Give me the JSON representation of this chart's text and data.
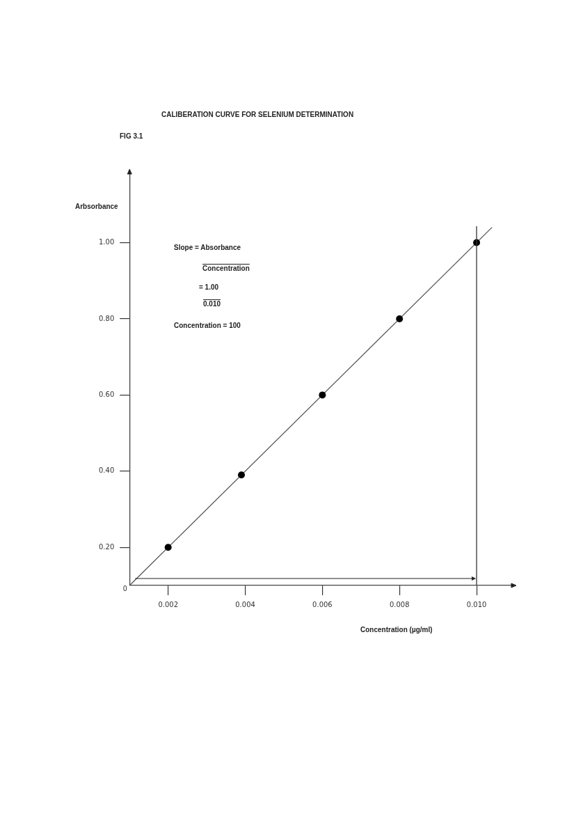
{
  "chart_data": {
    "type": "scatter",
    "title": "CALIBERATION CURVE FOR SELENIUM DETERMINATION",
    "subtitle": "FIG 3.1",
    "xlabel": "Concentration (µg/ml)",
    "ylabel": "Arbsorbance",
    "x": [
      0.002,
      0.0039,
      0.006,
      0.008,
      0.01
    ],
    "series": [
      {
        "color": "#000000",
        "values": [
          0.2,
          0.39,
          0.6,
          0.8,
          1.0
        ],
        "marker": "circle"
      },
      {
        "type": "line",
        "color": "#555555",
        "x": [
          0.001,
          0.0104
        ],
        "values": [
          0.1,
          1.04
        ],
        "marker": "none"
      }
    ],
    "xlim": [
      0.001,
      0.0109
    ],
    "ylim": [
      0.1,
      1.18
    ],
    "xticks": [
      {
        "value": 0.002,
        "label": "0.002"
      },
      {
        "value": 0.004,
        "label": "0.004"
      },
      {
        "value": 0.006,
        "label": "0.006"
      },
      {
        "value": 0.008,
        "label": "0.008"
      },
      {
        "value": 0.01,
        "label": "0.010"
      }
    ],
    "yticks": [
      {
        "value": 0.2,
        "label": "0.20"
      },
      {
        "value": 0.4,
        "label": "0.40"
      },
      {
        "value": 0.6,
        "label": "0.60"
      },
      {
        "value": 0.8,
        "label": "0.80"
      },
      {
        "value": 1,
        "label": "1.00"
      }
    ],
    "ref_lines": [
      {
        "axis": "x",
        "value": 0.01,
        "color": "#333333"
      }
    ],
    "annotations": [
      "Slope = Absorbance",
      "Concentration",
      "= 1.00",
      "0.010",
      "Concentration = 100",
      "0"
    ],
    "grid": false,
    "legend": false
  }
}
